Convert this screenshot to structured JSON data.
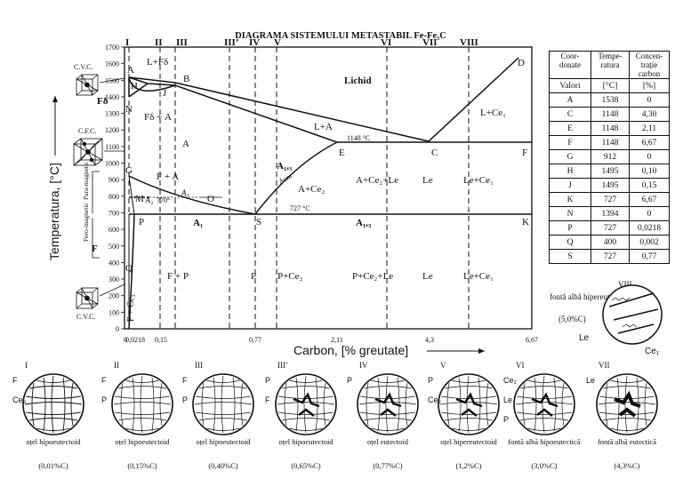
{
  "title": "DIAGRAMA SISTEMULUI METASTABIL Fe-Fe₃C",
  "axes": {
    "ylabel": "Temperatura, [°C]",
    "xlabel": "Carbon, [% greutate]",
    "y_ticks": [
      "0",
      "100",
      "200",
      "300",
      "400",
      "500",
      "600",
      "700",
      "800",
      "900",
      "1000",
      "1100",
      "1200",
      "1300",
      "1400",
      "1500",
      "1600",
      "1700"
    ],
    "x_ticks": [
      "0",
      "0,0218",
      "0,15",
      "0,77",
      "2,11",
      "4,3",
      "6,67"
    ]
  },
  "section_labels": [
    "I",
    "II",
    "III",
    "III’",
    "IV",
    "V",
    "VI",
    "VII",
    "VIII"
  ],
  "points": {
    "A": "A",
    "B": "B",
    "C": "C",
    "D": "D",
    "E": "E",
    "F": "F",
    "G": "G",
    "H": "H",
    "J": "J",
    "K": "K",
    "M": "M",
    "N": "N",
    "O": "O",
    "P": "P",
    "Q": "Q",
    "S": "S"
  },
  "phases": {
    "lichid": "Lichid",
    "l_fd": "L+Fδ",
    "fd": "Fδ",
    "fd_a": "Fδ + A",
    "a": "A",
    "l_a": "L+A",
    "l_ce": "L+Ce₁",
    "t1148": "1148 °C",
    "a13_left": "A₁,₃",
    "acm": "Acm",
    "a_ce2": "A+Ce₂",
    "a_ce2_le": "A+Ce₂+Le",
    "le_center": "Le",
    "le_ce1": "Le+Ce₁",
    "f_a": "F + A",
    "a2": "A₂",
    "t770": "770°",
    "a3": "A₃",
    "t727": "727 °C",
    "a1": "A₁",
    "a13_right": "A₁,₃",
    "f_p": "F + P",
    "p": "P",
    "p_ce2": "P+Ce₂",
    "p_ce2_le": "P+Ce₂+Le",
    "le_low": "Le",
    "le_ce1_low": "Le+Ce₁",
    "f_ce3": "F + Ce₃",
    "f_left": "F",
    "nonmag": "Para-magnetic",
    "ferromag": "Fero-magnetic"
  },
  "structures": {
    "cvc_top": "C.V.C.",
    "cfc": "C.F.C.",
    "cvc_bottom": "C.V.C."
  },
  "table": {
    "headers": [
      "Coor-donate",
      "Tempe-ratura",
      "Concen-trație carbon"
    ],
    "units": [
      "Valori",
      "[°C]",
      "[%]"
    ],
    "rows": [
      [
        "A",
        "1538",
        "0"
      ],
      [
        "C",
        "1148",
        "4,30"
      ],
      [
        "E",
        "1148",
        "2,11"
      ],
      [
        "F",
        "1148",
        "6,67"
      ],
      [
        "G",
        "912",
        "0"
      ],
      [
        "H",
        "1495",
        "0,10"
      ],
      [
        "J",
        "1495",
        "0,15"
      ],
      [
        "K",
        "727",
        "6,67"
      ],
      [
        "N",
        "1394",
        "0"
      ],
      [
        "P",
        "727",
        "0,0218"
      ],
      [
        "Q",
        "400",
        "0,002"
      ],
      [
        "S",
        "727",
        "0,77"
      ]
    ]
  },
  "micro_viii": {
    "roman": "VIII",
    "caption": "fontă albă hipereutectică",
    "conc": "(5,0%C)",
    "label_le": "Le",
    "label_ce": "Ce₁"
  },
  "micrographs": [
    {
      "roman": "I",
      "name": "oțel hipoeutectoid",
      "conc": "(0,01%C)",
      "labels": [
        "F",
        "Ce₃"
      ]
    },
    {
      "roman": "II",
      "name": "oțel hipoeutectoid",
      "conc": "(0,15%C)",
      "labels": [
        "F",
        "P"
      ]
    },
    {
      "roman": "III",
      "name": "oțel hipoeutectoid",
      "conc": "(0,40%C)",
      "labels": [
        "F",
        "P"
      ]
    },
    {
      "roman": "III’",
      "name": "oțel hipoeutectoid",
      "conc": "(0,65%C)",
      "labels": [
        "P",
        "F"
      ]
    },
    {
      "roman": "IV",
      "name": "oțel eutectoid",
      "conc": "(0,77%C)",
      "labels": [
        "P"
      ]
    },
    {
      "roman": "V",
      "name": "oțel hipereutectoid",
      "conc": "(1,2%C)",
      "labels": [
        "P",
        "Ce₂"
      ]
    },
    {
      "roman": "VI",
      "name": "fontă albă hipoeutectică",
      "conc": "(3,0%C)",
      "labels": [
        "Ce₂",
        "Le",
        "P"
      ]
    },
    {
      "roman": "VII",
      "name": "fontă albă eutectică",
      "conc": "(4,3%C)",
      "labels": [
        "Le"
      ]
    }
  ]
}
